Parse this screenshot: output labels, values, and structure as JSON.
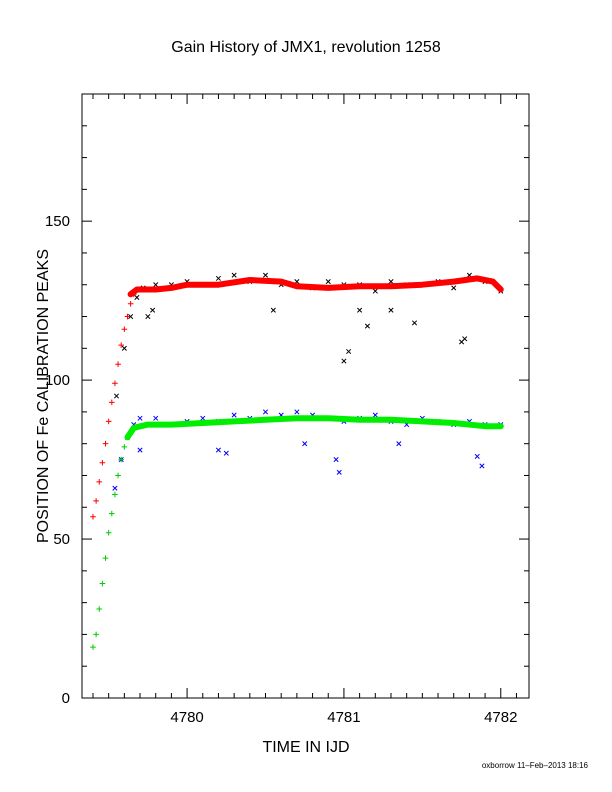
{
  "chart_data": {
    "type": "scatter",
    "title": "Gain History of JMX1, revolution 1258",
    "xlabel": "TIME IN IJD",
    "ylabel": "POSITION OF Fe CALIBRATION PEAKS",
    "footer": "oxborrow 11–Feb–2013 18:16",
    "xlim": [
      4779.33,
      4782.18
    ],
    "ylim": [
      0,
      190
    ],
    "x_ticks": [
      4780,
      4781,
      4782
    ],
    "y_ticks": [
      0,
      50,
      100,
      150
    ],
    "grid": false,
    "series": [
      {
        "marker": "x",
        "color": "#000000",
        "description_points": [
          [
            4779.55,
            95
          ],
          [
            4779.6,
            110
          ],
          [
            4779.64,
            120
          ],
          [
            4779.68,
            126
          ],
          [
            4779.72,
            129
          ],
          [
            4779.8,
            130
          ],
          [
            4779.9,
            130
          ],
          [
            4780.0,
            131
          ],
          [
            4780.1,
            130
          ],
          [
            4780.2,
            132
          ],
          [
            4780.3,
            133
          ],
          [
            4780.4,
            131
          ],
          [
            4780.5,
            133
          ],
          [
            4780.6,
            130
          ],
          [
            4780.7,
            131
          ],
          [
            4780.8,
            129
          ],
          [
            4780.9,
            131
          ],
          [
            4781.0,
            130
          ],
          [
            4781.1,
            130
          ],
          [
            4781.2,
            128
          ],
          [
            4781.3,
            131
          ],
          [
            4781.4,
            130
          ],
          [
            4781.5,
            130
          ],
          [
            4781.6,
            131
          ],
          [
            4781.7,
            129
          ],
          [
            4781.8,
            133
          ],
          [
            4781.9,
            131
          ],
          [
            4782.0,
            128
          ],
          [
            4779.75,
            120
          ],
          [
            4779.78,
            122
          ],
          [
            4781.0,
            106
          ],
          [
            4781.03,
            109
          ],
          [
            4781.15,
            117
          ],
          [
            4781.3,
            122
          ],
          [
            4781.45,
            118
          ],
          [
            4781.75,
            112
          ],
          [
            4781.77,
            113
          ],
          [
            4780.55,
            122
          ],
          [
            4781.1,
            122
          ]
        ]
      },
      {
        "marker": "+",
        "color": "#ff0000",
        "description_points": [
          [
            4779.4,
            57
          ],
          [
            4779.42,
            62
          ],
          [
            4779.44,
            68
          ],
          [
            4779.46,
            74
          ],
          [
            4779.48,
            80
          ],
          [
            4779.5,
            87
          ],
          [
            4779.52,
            93
          ],
          [
            4779.54,
            99
          ],
          [
            4779.56,
            105
          ],
          [
            4779.58,
            111
          ],
          [
            4779.6,
            116
          ],
          [
            4779.62,
            120
          ],
          [
            4779.64,
            124
          ],
          [
            4779.66,
            127
          ]
        ]
      },
      {
        "marker": "line",
        "color": "#ff0000",
        "description_points": [
          [
            4779.64,
            127
          ],
          [
            4779.68,
            128.5
          ],
          [
            4779.8,
            128.5
          ],
          [
            4779.9,
            129
          ],
          [
            4780.0,
            130
          ],
          [
            4780.2,
            130
          ],
          [
            4780.4,
            131.5
          ],
          [
            4780.6,
            131
          ],
          [
            4780.7,
            129.5
          ],
          [
            4780.9,
            129
          ],
          [
            4781.1,
            129.5
          ],
          [
            4781.3,
            129.5
          ],
          [
            4781.5,
            130
          ],
          [
            4781.7,
            131
          ],
          [
            4781.85,
            132
          ],
          [
            4781.95,
            131
          ],
          [
            4782.0,
            128.5
          ]
        ]
      },
      {
        "marker": "x",
        "color": "#0000ff",
        "description_points": [
          [
            4779.54,
            66
          ],
          [
            4779.58,
            75
          ],
          [
            4779.62,
            82
          ],
          [
            4779.66,
            86
          ],
          [
            4779.7,
            88
          ],
          [
            4779.8,
            88
          ],
          [
            4779.9,
            86
          ],
          [
            4780.0,
            87
          ],
          [
            4780.1,
            88
          ],
          [
            4780.2,
            87
          ],
          [
            4780.3,
            89
          ],
          [
            4780.4,
            88
          ],
          [
            4780.5,
            90
          ],
          [
            4780.6,
            89
          ],
          [
            4780.7,
            90
          ],
          [
            4780.8,
            89
          ],
          [
            4780.9,
            88
          ],
          [
            4781.0,
            87
          ],
          [
            4781.1,
            88
          ],
          [
            4781.2,
            89
          ],
          [
            4781.3,
            87
          ],
          [
            4781.4,
            86
          ],
          [
            4781.5,
            88
          ],
          [
            4781.6,
            87
          ],
          [
            4781.7,
            86
          ],
          [
            4781.8,
            87
          ],
          [
            4781.9,
            86
          ],
          [
            4782.0,
            86
          ],
          [
            4780.2,
            78
          ],
          [
            4780.25,
            77
          ],
          [
            4780.95,
            75
          ],
          [
            4780.97,
            71
          ],
          [
            4781.35,
            80
          ],
          [
            4781.85,
            76
          ],
          [
            4781.88,
            73
          ],
          [
            4779.7,
            78
          ],
          [
            4780.75,
            80
          ]
        ]
      },
      {
        "marker": "+",
        "color": "#00cc00",
        "description_points": [
          [
            4779.4,
            16
          ],
          [
            4779.42,
            20
          ],
          [
            4779.44,
            28
          ],
          [
            4779.46,
            36
          ],
          [
            4779.48,
            44
          ],
          [
            4779.5,
            52
          ],
          [
            4779.52,
            58
          ],
          [
            4779.54,
            64
          ],
          [
            4779.56,
            70
          ],
          [
            4779.58,
            75
          ],
          [
            4779.6,
            79
          ],
          [
            4779.62,
            82
          ]
        ]
      },
      {
        "marker": "line",
        "color": "#00ee00",
        "description_points": [
          [
            4779.62,
            82
          ],
          [
            4779.66,
            85
          ],
          [
            4779.75,
            86
          ],
          [
            4779.9,
            86
          ],
          [
            4780.1,
            86.5
          ],
          [
            4780.3,
            87
          ],
          [
            4780.5,
            87.5
          ],
          [
            4780.7,
            88
          ],
          [
            4780.9,
            88
          ],
          [
            4781.1,
            87.5
          ],
          [
            4781.3,
            87.5
          ],
          [
            4781.5,
            87
          ],
          [
            4781.7,
            86.5
          ],
          [
            4781.9,
            85.5
          ],
          [
            4782.0,
            85.5
          ]
        ]
      }
    ]
  }
}
